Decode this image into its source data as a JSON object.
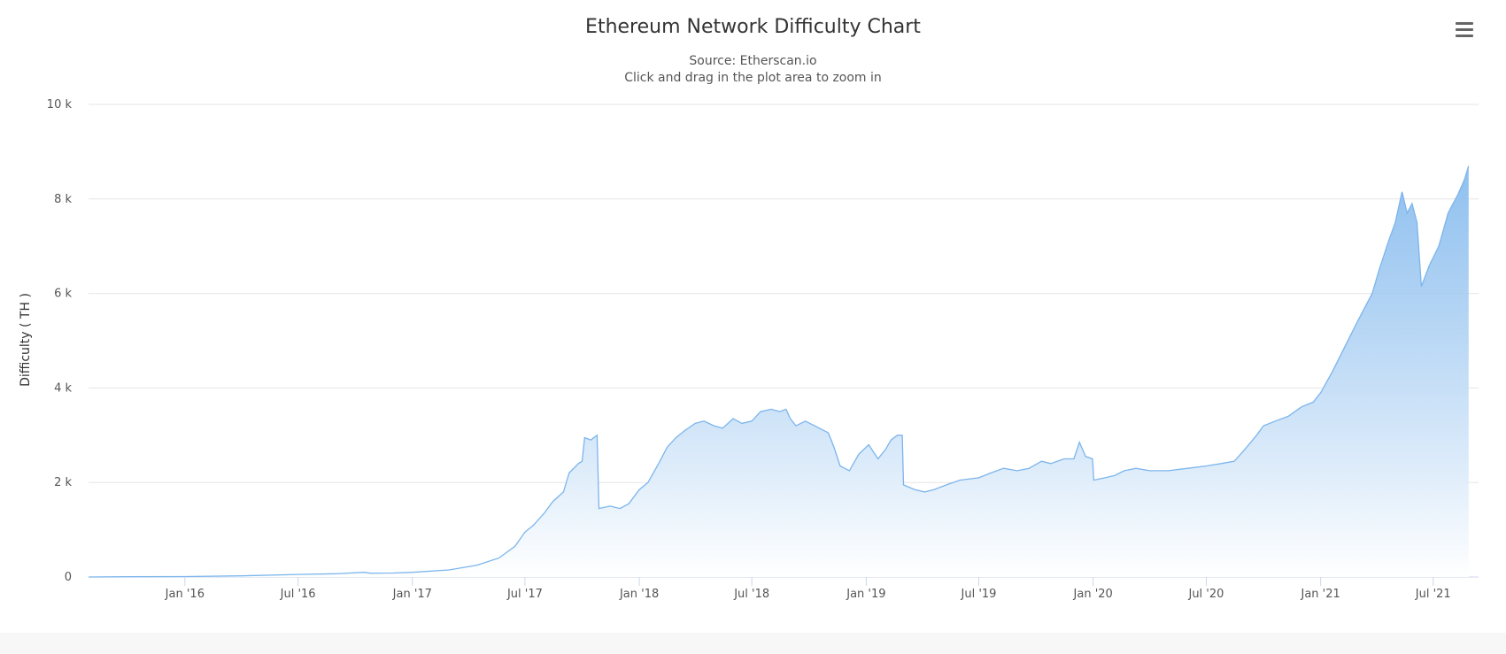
{
  "title": "Ethereum Network Difficulty Chart",
  "subtitle_lines": [
    "Source: Etherscan.io",
    "Click and drag in the plot area to zoom in"
  ],
  "menu": {
    "icon": "hamburger-menu-icon"
  },
  "colors": {
    "line": "#7cb5ec",
    "fill_top": "#7cb5ec",
    "fill_bottom": "#ffffff",
    "grid": "#e6e6e6"
  },
  "chart_data": {
    "type": "area",
    "title": "Ethereum Network Difficulty Chart",
    "subtitle": "Source: Etherscan.io",
    "ylabel": "Difficulty ( TH )",
    "xlabel": "",
    "ylim": [
      0,
      10000
    ],
    "xlim": [
      "2015-07-30",
      "2021-09-12"
    ],
    "y_ticks": [
      {
        "value": 0,
        "label": "0"
      },
      {
        "value": 2000,
        "label": "2 k"
      },
      {
        "value": 4000,
        "label": "4 k"
      },
      {
        "value": 6000,
        "label": "6 k"
      },
      {
        "value": 8000,
        "label": "8 k"
      },
      {
        "value": 10000,
        "label": "10 k"
      }
    ],
    "x_ticks": [
      {
        "date": "2016-01-01",
        "label": "Jan '16"
      },
      {
        "date": "2016-07-01",
        "label": "Jul '16"
      },
      {
        "date": "2017-01-01",
        "label": "Jan '17"
      },
      {
        "date": "2017-07-01",
        "label": "Jul '17"
      },
      {
        "date": "2018-01-01",
        "label": "Jan '18"
      },
      {
        "date": "2018-07-01",
        "label": "Jul '18"
      },
      {
        "date": "2019-01-01",
        "label": "Jan '19"
      },
      {
        "date": "2019-07-01",
        "label": "Jul '19"
      },
      {
        "date": "2020-01-01",
        "label": "Jan '20"
      },
      {
        "date": "2020-07-01",
        "label": "Jul '20"
      },
      {
        "date": "2021-01-01",
        "label": "Jan '21"
      },
      {
        "date": "2021-07-01",
        "label": "Jul '21"
      }
    ],
    "grid": true,
    "legend": "none",
    "series": [
      {
        "points": [
          [
            "2015-07-30",
            0
          ],
          [
            "2015-10-01",
            5
          ],
          [
            "2016-01-01",
            10
          ],
          [
            "2016-04-01",
            25
          ],
          [
            "2016-07-01",
            55
          ],
          [
            "2016-09-01",
            70
          ],
          [
            "2016-10-15",
            100
          ],
          [
            "2016-10-25",
            80
          ],
          [
            "2016-12-01",
            85
          ],
          [
            "2017-01-01",
            100
          ],
          [
            "2017-03-01",
            150
          ],
          [
            "2017-04-15",
            250
          ],
          [
            "2017-05-20",
            400
          ],
          [
            "2017-06-15",
            650
          ],
          [
            "2017-07-01",
            950
          ],
          [
            "2017-07-15",
            1100
          ],
          [
            "2017-08-01",
            1350
          ],
          [
            "2017-08-15",
            1600
          ],
          [
            "2017-09-01",
            1800
          ],
          [
            "2017-09-10",
            2200
          ],
          [
            "2017-09-25",
            2400
          ],
          [
            "2017-10-01",
            2450
          ],
          [
            "2017-10-05",
            2950
          ],
          [
            "2017-10-15",
            2900
          ],
          [
            "2017-10-25",
            3000
          ],
          [
            "2017-10-28",
            1450
          ],
          [
            "2017-11-15",
            1500
          ],
          [
            "2017-12-01",
            1450
          ],
          [
            "2017-12-15",
            1550
          ],
          [
            "2018-01-01",
            1850
          ],
          [
            "2018-01-15",
            2000
          ],
          [
            "2018-02-01",
            2400
          ],
          [
            "2018-02-15",
            2750
          ],
          [
            "2018-03-01",
            2950
          ],
          [
            "2018-03-15",
            3100
          ],
          [
            "2018-04-01",
            3250
          ],
          [
            "2018-04-15",
            3300
          ],
          [
            "2018-05-01",
            3200
          ],
          [
            "2018-05-15",
            3150
          ],
          [
            "2018-06-01",
            3350
          ],
          [
            "2018-06-15",
            3250
          ],
          [
            "2018-07-01",
            3300
          ],
          [
            "2018-07-15",
            3500
          ],
          [
            "2018-08-01",
            3550
          ],
          [
            "2018-08-15",
            3500
          ],
          [
            "2018-08-25",
            3550
          ],
          [
            "2018-09-01",
            3350
          ],
          [
            "2018-09-10",
            3200
          ],
          [
            "2018-09-25",
            3300
          ],
          [
            "2018-10-10",
            3200
          ],
          [
            "2018-11-01",
            3050
          ],
          [
            "2018-11-10",
            2750
          ],
          [
            "2018-11-20",
            2350
          ],
          [
            "2018-12-05",
            2250
          ],
          [
            "2018-12-20",
            2600
          ],
          [
            "2019-01-05",
            2800
          ],
          [
            "2019-01-20",
            2500
          ],
          [
            "2019-02-01",
            2700
          ],
          [
            "2019-02-10",
            2900
          ],
          [
            "2019-02-20",
            3000
          ],
          [
            "2019-02-28",
            3000
          ],
          [
            "2019-03-02",
            1950
          ],
          [
            "2019-03-20",
            1850
          ],
          [
            "2019-04-05",
            1800
          ],
          [
            "2019-04-20",
            1850
          ],
          [
            "2019-05-10",
            1950
          ],
          [
            "2019-06-01",
            2050
          ],
          [
            "2019-07-01",
            2100
          ],
          [
            "2019-07-20",
            2200
          ],
          [
            "2019-08-10",
            2300
          ],
          [
            "2019-09-01",
            2250
          ],
          [
            "2019-09-20",
            2300
          ],
          [
            "2019-10-10",
            2450
          ],
          [
            "2019-10-25",
            2400
          ],
          [
            "2019-11-15",
            2500
          ],
          [
            "2019-12-01",
            2500
          ],
          [
            "2019-12-10",
            2850
          ],
          [
            "2019-12-20",
            2550
          ],
          [
            "2019-12-31",
            2500
          ],
          [
            "2020-01-02",
            2050
          ],
          [
            "2020-01-20",
            2100
          ],
          [
            "2020-02-05",
            2150
          ],
          [
            "2020-02-20",
            2250
          ],
          [
            "2020-03-10",
            2300
          ],
          [
            "2020-04-01",
            2250
          ],
          [
            "2020-05-01",
            2250
          ],
          [
            "2020-06-01",
            2300
          ],
          [
            "2020-07-01",
            2350
          ],
          [
            "2020-07-25",
            2400
          ],
          [
            "2020-08-15",
            2450
          ],
          [
            "2020-09-01",
            2700
          ],
          [
            "2020-09-20",
            3000
          ],
          [
            "2020-10-01",
            3200
          ],
          [
            "2020-10-20",
            3300
          ],
          [
            "2020-11-10",
            3400
          ],
          [
            "2020-12-01",
            3600
          ],
          [
            "2020-12-20",
            3700
          ],
          [
            "2021-01-01",
            3900
          ],
          [
            "2021-01-20",
            4350
          ],
          [
            "2021-02-10",
            4900
          ],
          [
            "2021-03-01",
            5400
          ],
          [
            "2021-03-25",
            6000
          ],
          [
            "2021-04-05",
            6500
          ],
          [
            "2021-04-20",
            7100
          ],
          [
            "2021-05-01",
            7500
          ],
          [
            "2021-05-12",
            8150
          ],
          [
            "2021-05-20",
            7700
          ],
          [
            "2021-05-28",
            7900
          ],
          [
            "2021-06-05",
            7500
          ],
          [
            "2021-06-12",
            6150
          ],
          [
            "2021-06-25",
            6600
          ],
          [
            "2021-07-10",
            7000
          ],
          [
            "2021-07-25",
            7700
          ],
          [
            "2021-08-10",
            8100
          ],
          [
            "2021-08-20",
            8400
          ],
          [
            "2021-08-27",
            8700
          ]
        ]
      }
    ]
  }
}
